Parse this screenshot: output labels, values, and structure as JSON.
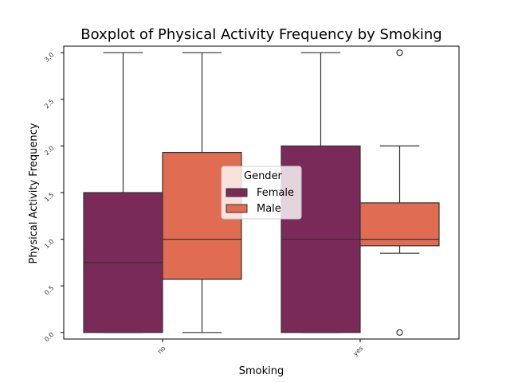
{
  "chart_data": {
    "type": "boxplot",
    "title": "Boxplot of Physical Activity Frequency by Smoking",
    "xlabel": "Smoking",
    "ylabel": "Physical Activity Frequency",
    "categories": [
      "no",
      "yes"
    ],
    "ylim": [
      -0.07,
      3.07
    ],
    "yticks": [
      0.0,
      0.5,
      1.0,
      1.5,
      2.0,
      2.5,
      3.0
    ],
    "ytick_labels": [
      "0.0",
      "0.5",
      "1.0",
      "1.5",
      "2.0",
      "2.5",
      "3.0"
    ],
    "grid": false,
    "legend": {
      "title": "Gender",
      "placement": "center",
      "entries": [
        "Female",
        "Male"
      ]
    },
    "series": [
      {
        "name": "Female",
        "color": "#7a2a59",
        "boxes": [
          {
            "category": "no",
            "whisker_low": 0.0,
            "q1": 0.0,
            "median": 0.75,
            "q3": 1.5,
            "whisker_high": 3.0,
            "outliers": []
          },
          {
            "category": "yes",
            "whisker_low": 0.0,
            "q1": 0.0,
            "median": 1.0,
            "q3": 2.0,
            "whisker_high": 3.0,
            "outliers": []
          }
        ]
      },
      {
        "name": "Male",
        "color": "#e06c52",
        "boxes": [
          {
            "category": "no",
            "whisker_low": 0.0,
            "q1": 0.57,
            "median": 1.0,
            "q3": 1.93,
            "whisker_high": 3.0,
            "outliers": []
          },
          {
            "category": "yes",
            "whisker_low": 0.85,
            "q1": 0.93,
            "median": 1.0,
            "q3": 1.39,
            "whisker_high": 2.0,
            "outliers": [
              0.0,
              3.0
            ]
          }
        ]
      }
    ]
  }
}
